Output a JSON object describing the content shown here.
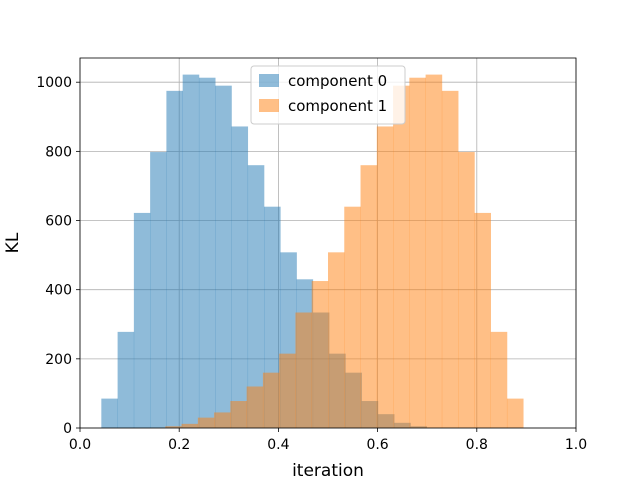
{
  "chart_data": {
    "type": "bar",
    "subtype": "histogram",
    "xlabel": "iteration",
    "ylabel": "KL",
    "xlim": [
      0.0,
      1.0
    ],
    "ylim": [
      0,
      1070
    ],
    "xticks": [
      "0.0",
      "0.2",
      "0.4",
      "0.6",
      "0.8",
      "1.0"
    ],
    "yticks": [
      "0",
      "200",
      "400",
      "600",
      "800",
      "1000"
    ],
    "grid": true,
    "legend_position": "top-center",
    "series": [
      {
        "name": "component 0",
        "color": "#1f77b4",
        "alpha": 0.5,
        "bin_start": 0.043,
        "bin_width": 0.0328,
        "values": [
          85,
          278,
          622,
          798,
          975,
          1022,
          1013,
          990,
          872,
          760,
          640,
          508,
          430,
          334,
          215,
          160,
          78,
          40,
          15,
          5
        ]
      },
      {
        "name": "component 1",
        "color": "#ff7f0e",
        "alpha": 0.5,
        "bin_start": 0.172,
        "bin_width": 0.0328,
        "values": [
          5,
          12,
          30,
          45,
          78,
          120,
          160,
          215,
          334,
          425,
          508,
          640,
          760,
          872,
          990,
          1013,
          1022,
          975,
          798,
          622,
          278,
          85
        ]
      }
    ]
  }
}
